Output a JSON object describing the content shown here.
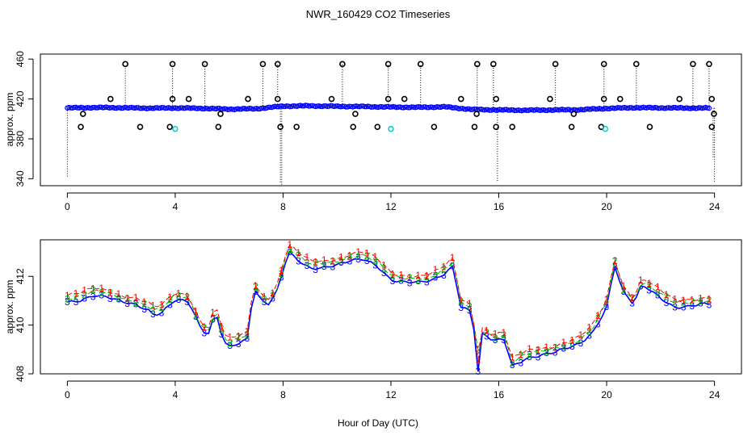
{
  "chart_data": [
    {
      "id": "top",
      "type": "scatter",
      "title": "NWR_160429  CO2 Timeseries",
      "xlabel": "",
      "ylabel": "approx. ppm",
      "xlim": [
        -1,
        25
      ],
      "ylim": [
        333,
        465
      ],
      "xticks": [
        0,
        4,
        8,
        12,
        16,
        20,
        24
      ],
      "xtick_labels": [
        "0",
        "4",
        "8",
        "12",
        "16",
        "20",
        "24"
      ],
      "yticks": [
        340,
        380,
        420,
        460
      ],
      "ytick_labels": [
        "340",
        "380",
        "420",
        "460"
      ],
      "colors": {
        "main": "#0000ff",
        "spike": "#000000",
        "low": "#00c8c8"
      },
      "baseline": [
        [
          0,
          411
        ],
        [
          1,
          411.4
        ],
        [
          2,
          411.2
        ],
        [
          3,
          410.8
        ],
        [
          4,
          411
        ],
        [
          5,
          410.6
        ],
        [
          6,
          409.8
        ],
        [
          7,
          410.2
        ],
        [
          8,
          412.8
        ],
        [
          9,
          413.1
        ],
        [
          10,
          412.6
        ],
        [
          11,
          412.4
        ],
        [
          12,
          411.9
        ],
        [
          13,
          411.6
        ],
        [
          14,
          412.1
        ],
        [
          15,
          409.5
        ],
        [
          16,
          409
        ],
        [
          17,
          408.7
        ],
        [
          18,
          409
        ],
        [
          19,
          409.2
        ],
        [
          20,
          410.5
        ],
        [
          21,
          411.3
        ],
        [
          22,
          411.1
        ],
        [
          23,
          410.9
        ],
        [
          23.8,
          410.9
        ]
      ],
      "spikes_high": [
        2.15,
        3.9,
        5.1,
        7.25,
        7.8,
        10.2,
        11.9,
        13.1,
        15.2,
        15.8,
        18.1,
        19.9,
        21.1,
        23.2,
        23.8
      ],
      "spikes_mid": [
        1.6,
        3.9,
        4.5,
        6.7,
        7.8,
        9.8,
        11.9,
        12.5,
        14.6,
        15.9,
        17.9,
        19.9,
        20.5,
        22.7,
        23.9
      ],
      "spikes_low": [
        0.5,
        2.7,
        3.8,
        5.6,
        7.9,
        8.5,
        10.6,
        11.5,
        13.6,
        15.1,
        15.9,
        16.5,
        18.7,
        19.8,
        21.6,
        23.9
      ],
      "dips": [
        [
          0,
          341
        ],
        [
          7.9,
          336
        ],
        [
          7.95,
          334
        ],
        [
          15.95,
          336
        ],
        [
          24.0,
          337
        ],
        [
          23.95,
          360
        ]
      ],
      "cyan_points": [
        [
          4.0,
          390
        ],
        [
          12.0,
          390
        ],
        [
          19.95,
          390
        ]
      ]
    },
    {
      "id": "bottom",
      "type": "line",
      "title": "",
      "xlabel": "Hour of Day (UTC)",
      "ylabel": "approx. ppm",
      "xlim": [
        -1,
        25
      ],
      "ylim": [
        408,
        413.5
      ],
      "xticks": [
        0,
        4,
        8,
        12,
        16,
        20,
        24
      ],
      "xtick_labels": [
        "0",
        "4",
        "8",
        "12",
        "16",
        "20",
        "24"
      ],
      "yticks": [
        408,
        410,
        412
      ],
      "ytick_labels": [
        "408",
        "410",
        "412"
      ],
      "series": [
        {
          "name": "1",
          "color": "#ff0000",
          "offset": 0.22
        },
        {
          "name": "2",
          "color": "#00b000",
          "offset": 0.1
        },
        {
          "name": "3",
          "color": "#0000ff",
          "offset": -0.06
        }
      ],
      "base_curve": [
        [
          0,
          411
        ],
        [
          0.5,
          411.1
        ],
        [
          1,
          411.3
        ],
        [
          1.5,
          411.2
        ],
        [
          2,
          411
        ],
        [
          2.5,
          410.9
        ],
        [
          3,
          410.7
        ],
        [
          3.2,
          410.5
        ],
        [
          3.5,
          410.6
        ],
        [
          4,
          411.1
        ],
        [
          4.5,
          411
        ],
        [
          4.9,
          410
        ],
        [
          5.2,
          409.6
        ],
        [
          5.5,
          410.6
        ],
        [
          5.8,
          409.4
        ],
        [
          6,
          409.2
        ],
        [
          6.5,
          409.4
        ],
        [
          6.7,
          409.5
        ],
        [
          6.9,
          411.6
        ],
        [
          7.2,
          411
        ],
        [
          7.5,
          410.9
        ],
        [
          7.8,
          411.5
        ],
        [
          8,
          412.3
        ],
        [
          8.2,
          413.1
        ],
        [
          8.5,
          412.8
        ],
        [
          9,
          412.4
        ],
        [
          9.5,
          412.4
        ],
        [
          10,
          412.5
        ],
        [
          10.5,
          412.7
        ],
        [
          11,
          412.8
        ],
        [
          11.5,
          412.5
        ],
        [
          12,
          411.9
        ],
        [
          12.5,
          411.8
        ],
        [
          13,
          411.8
        ],
        [
          13.5,
          411.9
        ],
        [
          14,
          412.2
        ],
        [
          14.3,
          412.5
        ],
        [
          14.6,
          410.8
        ],
        [
          15,
          410.6
        ],
        [
          15.2,
          408.7
        ],
        [
          15.4,
          409.7
        ],
        [
          15.8,
          409.4
        ],
        [
          16.2,
          409.5
        ],
        [
          16.5,
          408.4
        ],
        [
          17,
          408.7
        ],
        [
          17.5,
          408.8
        ],
        [
          18,
          408.9
        ],
        [
          18.5,
          409.1
        ],
        [
          19,
          409.3
        ],
        [
          19.5,
          409.8
        ],
        [
          20,
          410.8
        ],
        [
          20.3,
          412.5
        ],
        [
          20.6,
          411.4
        ],
        [
          21,
          410.9
        ],
        [
          21.3,
          411.7
        ],
        [
          21.5,
          411.6
        ],
        [
          22,
          411.2
        ],
        [
          22.5,
          410.8
        ],
        [
          23,
          410.8
        ],
        [
          23.5,
          410.9
        ],
        [
          23.8,
          410.9
        ]
      ],
      "dip_1": [
        15.25,
        408.6
      ],
      "dip_3": [
        15.25,
        408.1
      ]
    }
  ]
}
